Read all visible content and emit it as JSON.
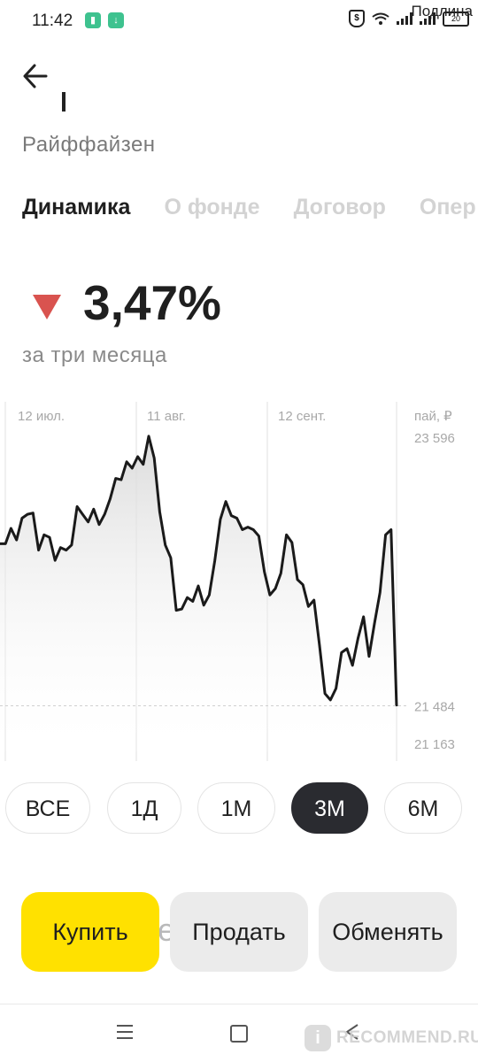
{
  "status_bar": {
    "time": "11:42",
    "overlay_text": "Подлина",
    "battery_level": "20"
  },
  "header": {
    "subtitle": "Райффайзен"
  },
  "tabs": [
    {
      "label": "Динамика",
      "active": true
    },
    {
      "label": "О фонде",
      "active": false
    },
    {
      "label": "Договор",
      "active": false
    },
    {
      "label": "Опер",
      "active": false
    }
  ],
  "change": {
    "value": "3,47%",
    "direction": "down",
    "period_label": "за три месяца",
    "color": "#d9534f"
  },
  "chart_data": {
    "type": "line",
    "unit_label": "пай, ₽",
    "x_ticks": [
      "12 июл.",
      "11 авг.",
      "12 сент."
    ],
    "y_ticks": [
      "23 596",
      "21 163"
    ],
    "current_label": "21 484",
    "y_top": 23596,
    "y_bottom": 21163,
    "current": 21484,
    "series": [
      {
        "values": [
          22750,
          22750,
          22870,
          22780,
          22950,
          22980,
          22990,
          22700,
          22820,
          22800,
          22620,
          22720,
          22700,
          22740,
          23040,
          22980,
          22920,
          23020,
          22900,
          22980,
          23100,
          23260,
          23250,
          23390,
          23340,
          23430,
          23370,
          23590,
          23420,
          23000,
          22740,
          22640,
          22230,
          22240,
          22330,
          22300,
          22420,
          22270,
          22350,
          22620,
          22940,
          23080,
          22970,
          22950,
          22860,
          22880,
          22860,
          22810,
          22530,
          22350,
          22400,
          22520,
          22820,
          22760,
          22470,
          22430,
          22260,
          22310,
          21960,
          21580,
          21530,
          21620,
          21900,
          21930,
          21800,
          22010,
          22180,
          21870,
          22130,
          22370,
          22820,
          22860,
          21480
        ]
      }
    ],
    "grid": true,
    "line_color": "#1a1a1a"
  },
  "periods": [
    {
      "label": "ВСЕ",
      "active": false
    },
    {
      "label": "1Д",
      "active": false
    },
    {
      "label": "1М",
      "active": false
    },
    {
      "label": "3М",
      "active": true
    },
    {
      "label": "6М",
      "active": false
    }
  ],
  "actions": {
    "buy": "Купить",
    "buy_peek": "е",
    "sell": "Продать",
    "exchange": "Обменять"
  },
  "watermark": {
    "badge": "i",
    "text": "RECOMMEND.RU"
  }
}
